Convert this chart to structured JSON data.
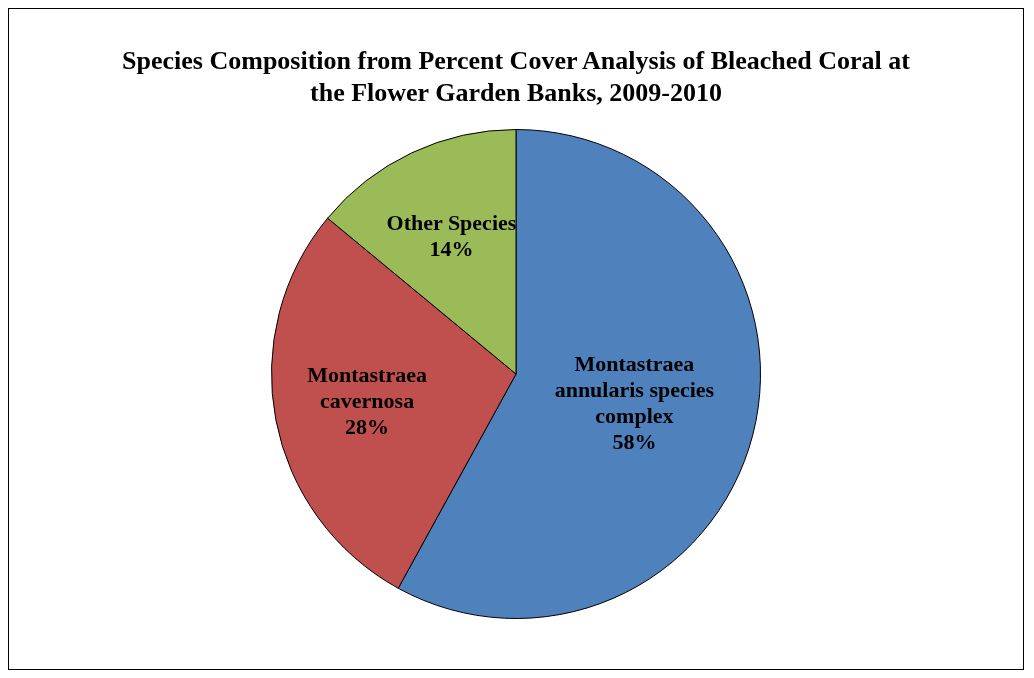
{
  "chart_data": {
    "type": "pie",
    "title": "Species Composition from Percent Cover Analysis of Bleached Coral at the Flower Garden Banks,  2009-2010",
    "categories": [
      "Montastraea annularis species complex",
      "Montastraea cavernosa",
      "Other Species"
    ],
    "values": [
      58,
      28,
      14
    ],
    "value_labels": [
      "58%",
      "28%",
      "14%"
    ],
    "colors": [
      "#4f81bd",
      "#c0504d",
      "#9bbb59"
    ],
    "legend": false
  }
}
